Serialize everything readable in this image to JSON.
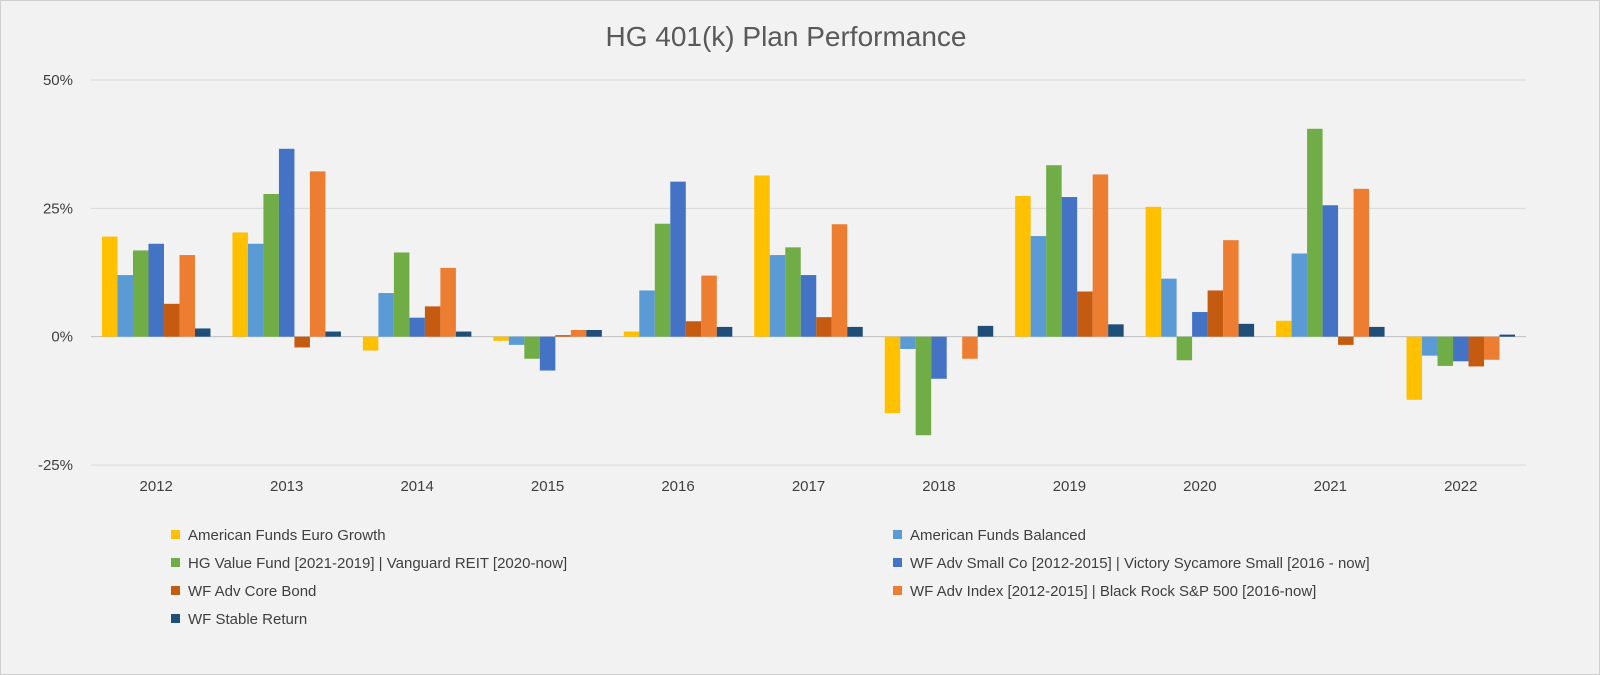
{
  "chart_data": {
    "type": "bar",
    "title": "HG 401(k) Plan Performance",
    "xlabel": "",
    "ylabel": "",
    "ylim": [
      -25,
      50
    ],
    "yticks": [
      50,
      25,
      0,
      -25
    ],
    "ytick_labels": [
      "50%",
      "25%",
      "0%",
      "-25%"
    ],
    "grid": true,
    "legend_position": "bottom",
    "categories": [
      "2012",
      "2013",
      "2014",
      "2015",
      "2016",
      "2017",
      "2018",
      "2019",
      "2020",
      "2021",
      "2022"
    ],
    "series": [
      {
        "name": "American Funds Euro Growth",
        "color": "#FFC000",
        "values": [
          19.5,
          20.3,
          -2.7,
          -0.8,
          1.0,
          31.4,
          -14.9,
          27.4,
          25.3,
          3.1,
          -12.3
        ]
      },
      {
        "name": "American Funds Balanced",
        "color": "#5B9BD5",
        "values": [
          12.0,
          18.1,
          8.5,
          -1.6,
          9.0,
          15.9,
          -2.4,
          19.6,
          11.3,
          16.2,
          -3.7
        ]
      },
      {
        "name": "HG Value Fund [2021-2019] | Vanguard REIT [2020-now]",
        "color": "#70AD47",
        "values": [
          16.8,
          27.8,
          16.4,
          -4.3,
          22.0,
          17.4,
          -19.2,
          33.4,
          -4.6,
          40.5,
          -5.7
        ]
      },
      {
        "name": "WF Adv Small Co [2012-2015] | Victory Sycamore Small [2016 - now]",
        "color": "#4472C4",
        "values": [
          18.1,
          36.6,
          3.7,
          -6.6,
          30.2,
          12.0,
          -8.2,
          27.2,
          4.8,
          25.6,
          -4.8
        ]
      },
      {
        "name": "WF Adv Core Bond",
        "color": "#C55A11",
        "values": [
          6.4,
          -2.1,
          5.9,
          0.3,
          3.0,
          3.8,
          0.0,
          8.8,
          9.0,
          -1.6,
          -5.8
        ]
      },
      {
        "name": "WF Adv Index [2012-2015] | Black Rock S&P 500 [2016-now]",
        "color": "#ED7D31",
        "values": [
          15.9,
          32.2,
          13.4,
          1.3,
          11.9,
          21.9,
          -4.3,
          31.6,
          18.8,
          28.8,
          -4.5
        ]
      },
      {
        "name": "WF Stable Return",
        "color": "#1F4E79",
        "values": [
          1.6,
          1.0,
          1.0,
          1.3,
          1.9,
          1.9,
          2.1,
          2.4,
          2.5,
          1.9,
          0.4
        ]
      }
    ]
  }
}
